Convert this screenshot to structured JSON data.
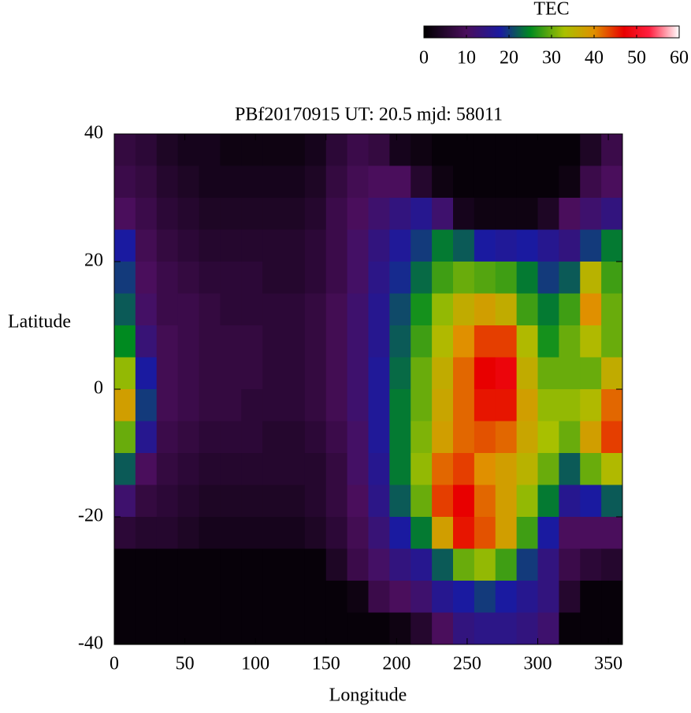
{
  "chart_data": {
    "type": "heatmap",
    "title": "PBf20170915  UT: 20.5  mjd: 58011",
    "x_label": "Longitude",
    "y_label": "Latitude",
    "xlim": [
      0,
      360
    ],
    "ylim": [
      -40,
      40
    ],
    "xticks": [
      0,
      50,
      100,
      150,
      200,
      250,
      300,
      350
    ],
    "yticks": [
      -40,
      -20,
      0,
      20,
      40
    ],
    "x": [
      7.5,
      22.5,
      37.5,
      52.5,
      67.5,
      82.5,
      97.5,
      112.5,
      127.5,
      142.5,
      157.5,
      172.5,
      187.5,
      202.5,
      217.5,
      232.5,
      247.5,
      262.5,
      277.5,
      292.5,
      307.5,
      322.5,
      337.5,
      352.5
    ],
    "y": [
      37.5,
      32.5,
      27.5,
      22.5,
      17.5,
      12.5,
      7.5,
      2.5,
      -2.5,
      -7.5,
      -12.5,
      -17.5,
      -22.5,
      -27.5,
      -32.5,
      -37.5
    ],
    "values": [
      [
        7,
        6,
        4,
        3,
        3,
        2,
        2,
        2,
        2,
        3,
        6,
        8,
        7,
        3,
        2,
        1,
        1,
        1,
        1,
        1,
        1,
        1,
        4,
        8
      ],
      [
        8,
        7,
        5,
        4,
        3,
        3,
        3,
        3,
        3,
        4,
        7,
        9,
        10,
        10,
        5,
        2,
        1,
        1,
        1,
        1,
        1,
        2,
        8,
        10
      ],
      [
        10,
        8,
        6,
        5,
        4,
        4,
        4,
        4,
        4,
        5,
        8,
        10,
        12,
        14,
        16,
        12,
        3,
        2,
        2,
        2,
        4,
        10,
        12,
        14
      ],
      [
        18,
        9,
        7,
        6,
        5,
        5,
        5,
        5,
        5,
        6,
        8,
        11,
        14,
        17,
        20,
        24,
        22,
        18,
        17,
        18,
        16,
        14,
        20,
        24
      ],
      [
        20,
        10,
        8,
        7,
        6,
        6,
        6,
        5,
        5,
        6,
        8,
        11,
        15,
        19,
        23,
        28,
        30,
        29,
        28,
        24,
        20,
        22,
        35,
        28
      ],
      [
        22,
        11,
        8,
        8,
        7,
        6,
        6,
        6,
        6,
        7,
        9,
        12,
        16,
        21,
        26,
        32,
        36,
        38,
        36,
        28,
        24,
        28,
        40,
        30
      ],
      [
        25,
        13,
        9,
        8,
        7,
        7,
        7,
        6,
        6,
        7,
        9,
        12,
        16,
        22,
        28,
        34,
        40,
        44,
        44,
        34,
        26,
        30,
        34,
        30
      ],
      [
        32,
        18,
        9,
        8,
        7,
        7,
        7,
        6,
        6,
        7,
        9,
        12,
        17,
        23,
        30,
        36,
        42,
        47,
        48,
        36,
        30,
        30,
        30,
        36
      ],
      [
        38,
        20,
        9,
        8,
        7,
        7,
        6,
        6,
        6,
        7,
        9,
        12,
        17,
        24,
        30,
        37,
        42,
        46,
        46,
        38,
        32,
        32,
        34,
        42
      ],
      [
        30,
        16,
        8,
        7,
        6,
        6,
        6,
        5,
        5,
        6,
        8,
        11,
        17,
        24,
        31,
        38,
        42,
        43,
        42,
        37,
        33,
        30,
        38,
        44
      ],
      [
        22,
        10,
        7,
        6,
        5,
        5,
        5,
        5,
        5,
        5,
        7,
        11,
        16,
        24,
        32,
        42,
        44,
        40,
        38,
        35,
        30,
        22,
        30,
        34
      ],
      [
        12,
        7,
        6,
        5,
        4,
        4,
        4,
        4,
        4,
        5,
        7,
        10,
        15,
        22,
        30,
        44,
        47,
        42,
        38,
        32,
        24,
        16,
        18,
        22
      ],
      [
        6,
        5,
        5,
        4,
        3,
        3,
        3,
        3,
        3,
        4,
        6,
        9,
        13,
        18,
        24,
        38,
        46,
        43,
        38,
        28,
        18,
        10,
        10,
        10
      ],
      [
        1,
        1,
        1,
        1,
        1,
        1,
        1,
        1,
        1,
        1,
        4,
        8,
        11,
        14,
        16,
        22,
        30,
        32,
        28,
        20,
        14,
        8,
        6,
        5
      ],
      [
        1,
        1,
        1,
        1,
        1,
        1,
        1,
        1,
        1,
        1,
        1,
        2,
        8,
        10,
        12,
        16,
        18,
        20,
        18,
        16,
        14,
        5,
        1,
        1
      ],
      [
        1,
        1,
        1,
        1,
        1,
        1,
        1,
        1,
        1,
        1,
        1,
        1,
        1,
        2,
        5,
        10,
        14,
        15,
        15,
        14,
        12,
        1,
        1,
        1
      ]
    ],
    "colormap": [
      [
        0,
        "#000000"
      ],
      [
        10,
        "#4a0e5c"
      ],
      [
        18,
        "#1a1aa0"
      ],
      [
        25,
        "#008a20"
      ],
      [
        33,
        "#a8c000"
      ],
      [
        40,
        "#e09000"
      ],
      [
        47,
        "#e80000"
      ],
      [
        53,
        "#ff2040"
      ],
      [
        60,
        "#ffffff"
      ]
    ],
    "colorbar": {
      "label": "TEC",
      "lim": [
        0,
        60
      ],
      "ticks": [
        0,
        10,
        20,
        30,
        40,
        50,
        60
      ]
    }
  }
}
